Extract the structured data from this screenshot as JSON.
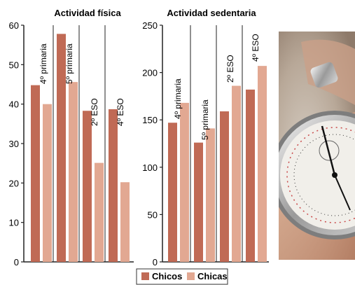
{
  "chart_data": [
    {
      "type": "bar",
      "title": "Actividad física",
      "categories": [
        "4º primaria",
        "5º primaria",
        "2º ESO",
        "4º ESO"
      ],
      "series": [
        {
          "name": "Chicos",
          "values": [
            44.8,
            57.8,
            38.3,
            38.7
          ]
        },
        {
          "name": "Chicas",
          "values": [
            40.0,
            45.6,
            25.1,
            20.2
          ]
        }
      ],
      "yticks": [
        "0",
        "10",
        "20",
        "30",
        "40",
        "50",
        "60"
      ],
      "ylim": [
        0,
        60
      ],
      "grid": false
    },
    {
      "type": "bar",
      "title": "Actividad sedentaria",
      "categories": [
        "4º primaria",
        "5º primaria",
        "2º ESO",
        "4º ESO"
      ],
      "series": [
        {
          "name": "Chicos",
          "values": [
            147,
            126,
            159,
            182
          ]
        },
        {
          "name": "Chicas",
          "values": [
            168,
            141,
            186,
            207
          ]
        }
      ],
      "yticks": [
        "0",
        "50",
        "100",
        "150",
        "200",
        "250"
      ],
      "ylim": [
        0,
        250
      ],
      "grid": false
    }
  ],
  "legend": {
    "placement": "bottom-center",
    "items": [
      {
        "label": "Chicos",
        "color": "#c06a55"
      },
      {
        "label": "Chicas",
        "color": "#e2a892"
      }
    ]
  },
  "colors": {
    "chicos": "#c06a55",
    "chicas": "#e2a892"
  },
  "photo": {
    "subject": "stopwatch-image"
  }
}
